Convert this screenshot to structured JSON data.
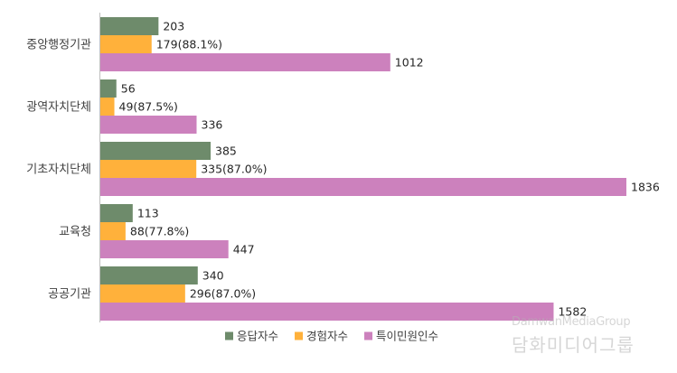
{
  "chart_data": {
    "type": "bar",
    "orientation": "horizontal",
    "categories": [
      "중앙행정기관",
      "광역자치단체",
      "기초자치단체",
      "교육청",
      "공공기관"
    ],
    "series": [
      {
        "name": "응답자수",
        "color": "#6e8b6b",
        "values": [
          203,
          56,
          385,
          113,
          340
        ],
        "labels": [
          "203",
          "56",
          "385",
          "113",
          "340"
        ]
      },
      {
        "name": "경험자수",
        "color": "#ffb13b",
        "values": [
          179,
          49,
          335,
          88,
          296
        ],
        "labels": [
          "179(88.1%)",
          "49(87.5%)",
          "335(87.0%)",
          "88(77.8%)",
          "296(87.0%)"
        ]
      },
      {
        "name": "특이민원인수",
        "color": "#cc81bd",
        "values": [
          1012,
          336,
          1836,
          447,
          1582
        ],
        "labels": [
          "1012",
          "336",
          "1836",
          "447",
          "1582"
        ]
      }
    ],
    "xlim": [
      0,
      1836
    ],
    "grid": false,
    "legend": "bottom"
  },
  "watermark": {
    "line1": "DamwanMediaGroup",
    "line2": "담화미디어그룹"
  }
}
